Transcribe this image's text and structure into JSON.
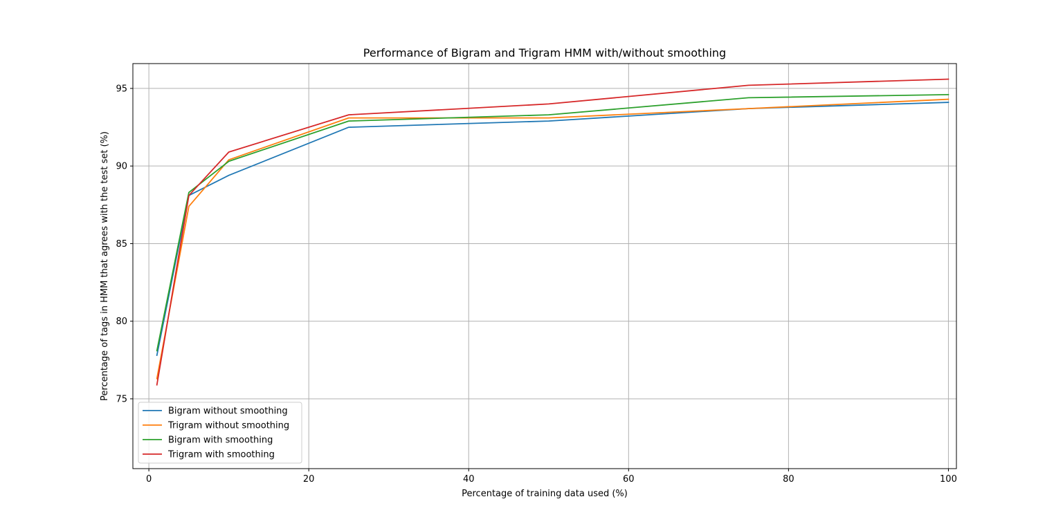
{
  "chart_data": {
    "type": "line",
    "title": "Performance of Bigram and Trigram HMM with/without smoothing",
    "xlabel": "Percentage of training data used (%)",
    "ylabel": "Percentage of tags in HMM that agrees with the test set (%)",
    "x": [
      1,
      5,
      10,
      25,
      50,
      75,
      100
    ],
    "xlim": [
      -2,
      101
    ],
    "ylim": [
      70.5,
      96.6
    ],
    "xticks": [
      0,
      20,
      40,
      60,
      80,
      100
    ],
    "yticks": [
      75,
      80,
      85,
      90,
      95
    ],
    "grid": true,
    "legend_position": "lower-left",
    "series": [
      {
        "name": "Bigram without smoothing",
        "color": "#1f77b4",
        "values": [
          77.8,
          88.1,
          89.4,
          92.5,
          92.9,
          93.7,
          94.1
        ]
      },
      {
        "name": "Trigram without smoothing",
        "color": "#ff7f0e",
        "values": [
          76.3,
          87.4,
          90.4,
          93.1,
          93.1,
          93.7,
          94.3
        ]
      },
      {
        "name": "Bigram with smoothing",
        "color": "#2ca02c",
        "values": [
          78.1,
          88.3,
          90.3,
          92.9,
          93.3,
          94.4,
          94.6
        ]
      },
      {
        "name": "Trigram with smoothing",
        "color": "#d62728",
        "values": [
          75.9,
          88.1,
          90.9,
          93.3,
          94.0,
          95.2,
          95.6
        ]
      }
    ]
  }
}
